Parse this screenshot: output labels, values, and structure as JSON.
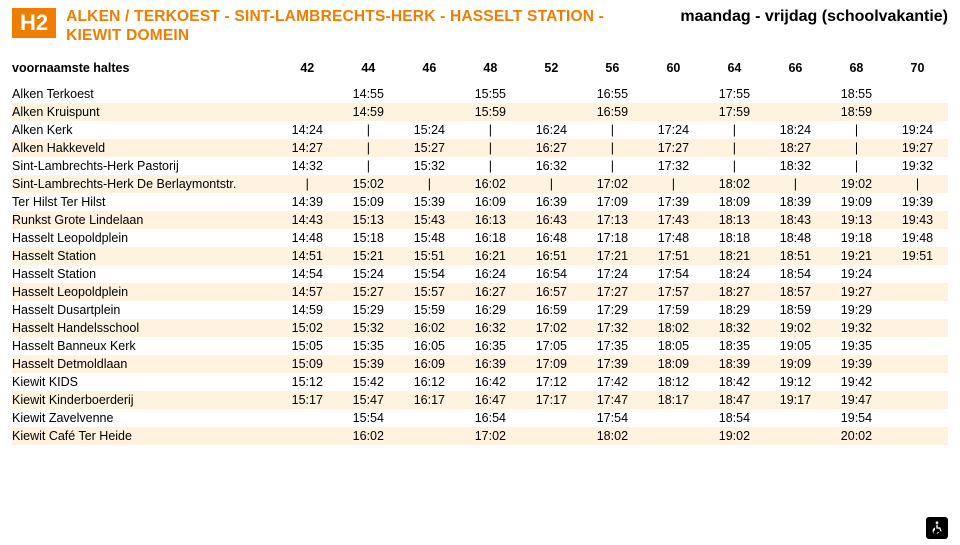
{
  "header": {
    "line_code": "H2",
    "route_title": "ALKEN / TERKOEST - SINT-LAMBRECHTS-HERK - HASSELT STATION - KIEWIT DOMEIN",
    "schedule_type": "maandag - vrijdag (schoolvakantie)"
  },
  "styling": {
    "accent_color": "#ef7d00",
    "stripe_color": "#fff2df",
    "background_color": "#ffffff",
    "text_color": "#000000",
    "badge_text_color": "#ffffff",
    "font_family": "Arial",
    "header_fontsize_pt": 12,
    "body_fontsize_pt": 9.5,
    "num_time_columns": 11
  },
  "table": {
    "voornaamste_haltes_label": "voornaamste haltes",
    "column_refs": [
      "42",
      "44",
      "46",
      "48",
      "52",
      "56",
      "60",
      "64",
      "66",
      "68",
      "70"
    ],
    "rows": [
      {
        "stop": "Alken Terkoest",
        "times": [
          "",
          "14:55",
          "",
          "15:55",
          "",
          "16:55",
          "",
          "17:55",
          "",
          "18:55",
          ""
        ]
      },
      {
        "stop": "Alken Kruispunt",
        "times": [
          "",
          "14:59",
          "",
          "15:59",
          "",
          "16:59",
          "",
          "17:59",
          "",
          "18:59",
          ""
        ]
      },
      {
        "stop": "Alken Kerk",
        "times": [
          "14:24",
          "|",
          "15:24",
          "|",
          "16:24",
          "|",
          "17:24",
          "|",
          "18:24",
          "|",
          "19:24"
        ]
      },
      {
        "stop": "Alken Hakkeveld",
        "times": [
          "14:27",
          "|",
          "15:27",
          "|",
          "16:27",
          "|",
          "17:27",
          "|",
          "18:27",
          "|",
          "19:27"
        ]
      },
      {
        "stop": "Sint-Lambrechts-Herk Pastorij",
        "times": [
          "14:32",
          "|",
          "15:32",
          "|",
          "16:32",
          "|",
          "17:32",
          "|",
          "18:32",
          "|",
          "19:32"
        ]
      },
      {
        "stop": "Sint-Lambrechts-Herk De Berlaymontstr.",
        "times": [
          "|",
          "15:02",
          "|",
          "16:02",
          "|",
          "17:02",
          "|",
          "18:02",
          "|",
          "19:02",
          "|"
        ]
      },
      {
        "stop": "Ter Hilst Ter Hilst",
        "times": [
          "14:39",
          "15:09",
          "15:39",
          "16:09",
          "16:39",
          "17:09",
          "17:39",
          "18:09",
          "18:39",
          "19:09",
          "19:39"
        ]
      },
      {
        "stop": "Runkst Grote Lindelaan",
        "times": [
          "14:43",
          "15:13",
          "15:43",
          "16:13",
          "16:43",
          "17:13",
          "17:43",
          "18:13",
          "18:43",
          "19:13",
          "19:43"
        ]
      },
      {
        "stop": "Hasselt Leopoldplein",
        "times": [
          "14:48",
          "15:18",
          "15:48",
          "16:18",
          "16:48",
          "17:18",
          "17:48",
          "18:18",
          "18:48",
          "19:18",
          "19:48"
        ]
      },
      {
        "stop": "Hasselt Station",
        "times": [
          "14:51",
          "15:21",
          "15:51",
          "16:21",
          "16:51",
          "17:21",
          "17:51",
          "18:21",
          "18:51",
          "19:21",
          "19:51"
        ]
      },
      {
        "stop": "Hasselt Station",
        "times": [
          "14:54",
          "15:24",
          "15:54",
          "16:24",
          "16:54",
          "17:24",
          "17:54",
          "18:24",
          "18:54",
          "19:24",
          ""
        ]
      },
      {
        "stop": "Hasselt Leopoldplein",
        "times": [
          "14:57",
          "15:27",
          "15:57",
          "16:27",
          "16:57",
          "17:27",
          "17:57",
          "18:27",
          "18:57",
          "19:27",
          ""
        ]
      },
      {
        "stop": "Hasselt Dusartplein",
        "times": [
          "14:59",
          "15:29",
          "15:59",
          "16:29",
          "16:59",
          "17:29",
          "17:59",
          "18:29",
          "18:59",
          "19:29",
          ""
        ]
      },
      {
        "stop": "Hasselt Handelsschool",
        "times": [
          "15:02",
          "15:32",
          "16:02",
          "16:32",
          "17:02",
          "17:32",
          "18:02",
          "18:32",
          "19:02",
          "19:32",
          ""
        ]
      },
      {
        "stop": "Hasselt Banneux Kerk",
        "times": [
          "15:05",
          "15:35",
          "16:05",
          "16:35",
          "17:05",
          "17:35",
          "18:05",
          "18:35",
          "19:05",
          "19:35",
          ""
        ]
      },
      {
        "stop": "Hasselt Detmoldlaan",
        "times": [
          "15:09",
          "15:39",
          "16:09",
          "16:39",
          "17:09",
          "17:39",
          "18:09",
          "18:39",
          "19:09",
          "19:39",
          ""
        ]
      },
      {
        "stop": "Kiewit KIDS",
        "times": [
          "15:12",
          "15:42",
          "16:12",
          "16:42",
          "17:12",
          "17:42",
          "18:12",
          "18:42",
          "19:12",
          "19:42",
          ""
        ]
      },
      {
        "stop": "Kiewit Kinderboerderij",
        "times": [
          "15:17",
          "15:47",
          "16:17",
          "16:47",
          "17:17",
          "17:47",
          "18:17",
          "18:47",
          "19:17",
          "19:47",
          ""
        ]
      },
      {
        "stop": "Kiewit Zavelvenne",
        "times": [
          "",
          "15:54",
          "",
          "16:54",
          "",
          "17:54",
          "",
          "18:54",
          "",
          "19:54",
          ""
        ]
      },
      {
        "stop": "Kiewit Café Ter Heide",
        "times": [
          "",
          "16:02",
          "",
          "17:02",
          "",
          "18:02",
          "",
          "19:02",
          "",
          "20:02",
          ""
        ]
      }
    ]
  }
}
